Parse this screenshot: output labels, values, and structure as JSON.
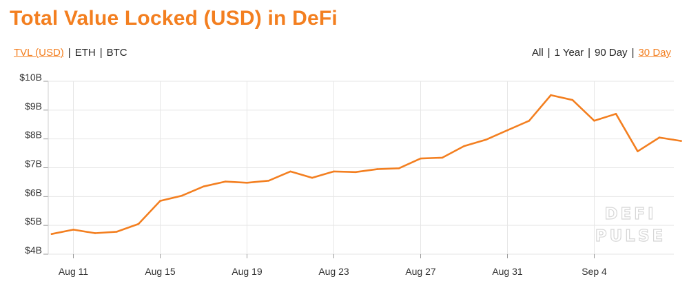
{
  "title": "Total Value Locked (USD) in DeFi",
  "currency_tabs": [
    {
      "label": "TVL (USD)",
      "active": true
    },
    {
      "label": "ETH",
      "active": false
    },
    {
      "label": "BTC",
      "active": false
    }
  ],
  "range_tabs": [
    {
      "label": "All",
      "active": false
    },
    {
      "label": "1 Year",
      "active": false
    },
    {
      "label": "90 Day",
      "active": false
    },
    {
      "label": "30 Day",
      "active": true
    }
  ],
  "separator": "|",
  "watermark": {
    "line1": "DEFI",
    "line2": "PULSE"
  },
  "colors": {
    "accent": "#f37f20",
    "line": "#f37f20",
    "grid": "#e6e6e6",
    "text": "#222222"
  },
  "chart_data": {
    "type": "line",
    "title": "Total Value Locked (USD) in DeFi",
    "xlabel": "",
    "ylabel": "",
    "unit": "USD billions",
    "ylim": [
      4,
      10
    ],
    "yticks": [
      10,
      9,
      8,
      7,
      6,
      5,
      4
    ],
    "ytick_labels": [
      "$10B",
      "$9B",
      "$8B",
      "$7B",
      "$6B",
      "$5B",
      "$4B"
    ],
    "xticks": [
      "Aug 11",
      "Aug 15",
      "Aug 19",
      "Aug 23",
      "Aug 27",
      "Aug 31",
      "Sep 4"
    ],
    "grid": true,
    "series": [
      {
        "x": [
          "Aug 10",
          "Aug 11",
          "Aug 12",
          "Aug 13",
          "Aug 14",
          "Aug 15",
          "Aug 16",
          "Aug 17",
          "Aug 18",
          "Aug 19",
          "Aug 20",
          "Aug 21",
          "Aug 22",
          "Aug 23",
          "Aug 24",
          "Aug 25",
          "Aug 26",
          "Aug 27",
          "Aug 28",
          "Aug 29",
          "Aug 30",
          "Aug 31",
          "Sep 1",
          "Sep 2",
          "Sep 3",
          "Sep 4",
          "Sep 5",
          "Sep 6",
          "Sep 7",
          "Sep 8"
        ],
        "values": [
          4.7,
          4.85,
          4.73,
          4.78,
          5.05,
          5.85,
          6.03,
          6.35,
          6.52,
          6.48,
          6.55,
          6.87,
          6.65,
          6.87,
          6.85,
          6.95,
          6.98,
          7.32,
          7.35,
          7.75,
          7.97,
          8.3,
          8.63,
          9.52,
          9.35,
          8.63,
          8.87,
          7.57,
          8.05,
          7.93
        ]
      }
    ]
  }
}
